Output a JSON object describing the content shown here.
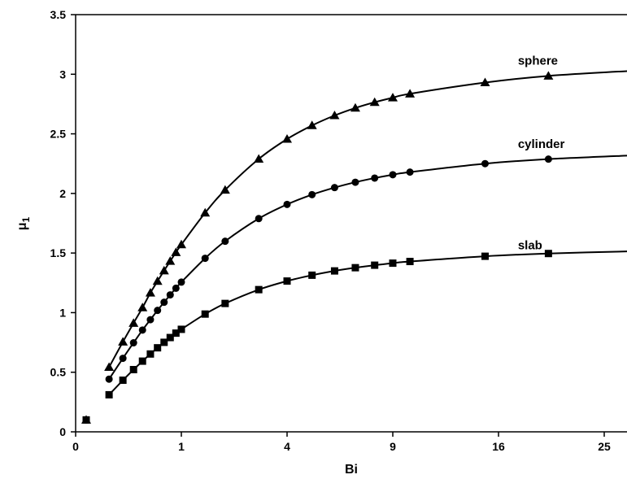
{
  "chart_data": {
    "type": "scatter",
    "title": "",
    "xlabel": "Bi",
    "ylabel_main": "μ",
    "ylabel_sub": "1",
    "x_scale": "sqrt",
    "xlim": [
      0,
      28
    ],
    "ylim": [
      0,
      3.5
    ],
    "x_ticks": [
      0,
      1,
      4,
      9,
      16,
      25
    ],
    "y_ticks": [
      0,
      0.5,
      1,
      1.5,
      2,
      2.5,
      3,
      3.5
    ],
    "grid": false,
    "legend": "none",
    "series": [
      {
        "name": "sphere",
        "marker": "triangle",
        "color": "#000000",
        "line_x": [
          0.1,
          0.2,
          0.3,
          0.4,
          0.5,
          0.6,
          0.7,
          0.8,
          0.9,
          1,
          1.5,
          2,
          3,
          4,
          5,
          6,
          7,
          8,
          9,
          10,
          15,
          20,
          28
        ],
        "line_y": [
          0.542,
          0.755,
          0.912,
          1.042,
          1.166,
          1.264,
          1.352,
          1.432,
          1.505,
          1.571,
          1.837,
          2.029,
          2.289,
          2.456,
          2.57,
          2.654,
          2.717,
          2.765,
          2.803,
          2.836,
          2.93,
          2.986,
          3.03
        ],
        "x": [
          0.01,
          0.1,
          0.2,
          0.3,
          0.4,
          0.5,
          0.6,
          0.7,
          0.8,
          0.9,
          1,
          1.5,
          2,
          3,
          4,
          5,
          6,
          7,
          8,
          9,
          10,
          15,
          20
        ],
        "y": [
          0.1,
          0.542,
          0.755,
          0.912,
          1.042,
          1.166,
          1.264,
          1.352,
          1.432,
          1.505,
          1.571,
          1.837,
          2.029,
          2.289,
          2.456,
          2.57,
          2.654,
          2.717,
          2.765,
          2.803,
          2.836,
          2.93,
          2.986
        ]
      },
      {
        "name": "cylinder",
        "marker": "circle",
        "color": "#000000",
        "line_x": [
          0.1,
          0.2,
          0.3,
          0.4,
          0.5,
          0.6,
          0.7,
          0.8,
          0.9,
          1,
          1.5,
          2,
          3,
          4,
          5,
          6,
          7,
          8,
          9,
          10,
          15,
          20,
          28
        ],
        "line_y": [
          0.442,
          0.617,
          0.747,
          0.854,
          0.941,
          1.019,
          1.087,
          1.149,
          1.205,
          1.256,
          1.456,
          1.599,
          1.789,
          1.908,
          1.99,
          2.049,
          2.094,
          2.129,
          2.157,
          2.179,
          2.25,
          2.288,
          2.32
        ],
        "x": [
          0.01,
          0.1,
          0.2,
          0.3,
          0.4,
          0.5,
          0.6,
          0.7,
          0.8,
          0.9,
          1,
          1.5,
          2,
          3,
          4,
          5,
          6,
          7,
          8,
          9,
          10,
          15,
          20
        ],
        "y": [
          0.1,
          0.442,
          0.617,
          0.747,
          0.854,
          0.941,
          1.019,
          1.087,
          1.149,
          1.205,
          1.256,
          1.456,
          1.599,
          1.789,
          1.908,
          1.99,
          2.049,
          2.094,
          2.129,
          2.157,
          2.179,
          2.25,
          2.288
        ]
      },
      {
        "name": "slab",
        "marker": "square",
        "color": "#000000",
        "line_x": [
          0.1,
          0.2,
          0.3,
          0.4,
          0.5,
          0.6,
          0.7,
          0.8,
          0.9,
          1,
          1.5,
          2,
          3,
          4,
          5,
          6,
          7,
          8,
          9,
          10,
          15,
          20,
          28
        ],
        "line_y": [
          0.311,
          0.433,
          0.522,
          0.593,
          0.653,
          0.705,
          0.751,
          0.791,
          0.828,
          0.86,
          0.988,
          1.077,
          1.193,
          1.265,
          1.314,
          1.35,
          1.377,
          1.398,
          1.415,
          1.429,
          1.473,
          1.496,
          1.515
        ],
        "x": [
          0.01,
          0.1,
          0.2,
          0.3,
          0.4,
          0.5,
          0.6,
          0.7,
          0.8,
          0.9,
          1,
          1.5,
          2,
          3,
          4,
          5,
          6,
          7,
          8,
          9,
          10,
          15,
          20
        ],
        "y": [
          0.1,
          0.311,
          0.433,
          0.522,
          0.593,
          0.653,
          0.705,
          0.751,
          0.791,
          0.828,
          0.86,
          0.988,
          1.077,
          1.193,
          1.265,
          1.314,
          1.35,
          1.377,
          1.398,
          1.415,
          1.429,
          1.473,
          1.496
        ]
      }
    ],
    "annotations": [
      {
        "text": "sphere",
        "x": 17.5,
        "y": 3.08
      },
      {
        "text": "cylinder",
        "x": 17.5,
        "y": 2.38
      },
      {
        "text": "slab",
        "x": 17.5,
        "y": 1.53
      }
    ]
  }
}
